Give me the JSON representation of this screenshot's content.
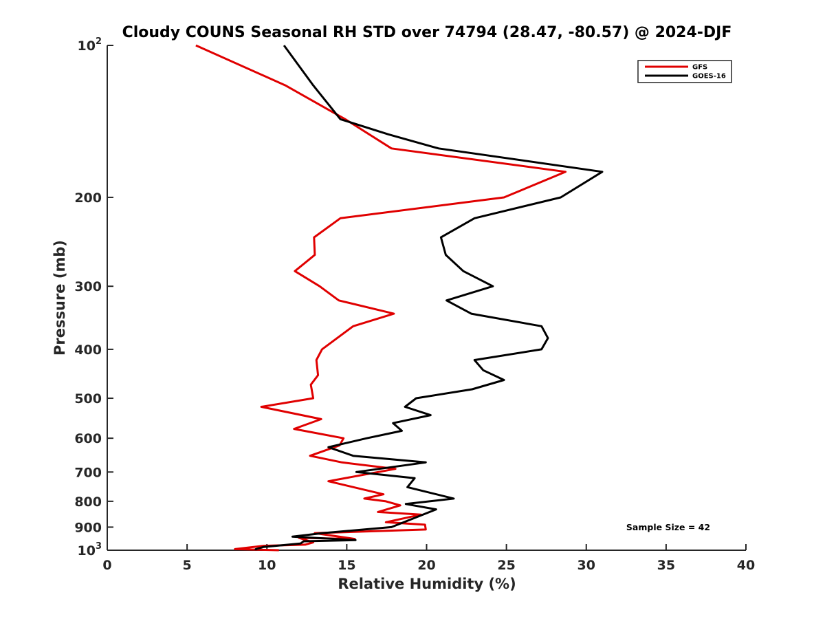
{
  "chart_data": {
    "type": "line",
    "title": "Cloudy COUNS Seasonal RH STD over 74794 (28.47, -80.57) @ 2024-DJF",
    "xlabel": "Relative Humidity (%)",
    "ylabel": "Pressure (mb)",
    "xlim": [
      0,
      40
    ],
    "ylim": [
      100,
      1000
    ],
    "yscale": "log",
    "yreversed": true,
    "grid": false,
    "legend_position": "top-right",
    "x_ticks": [
      0,
      5,
      10,
      15,
      20,
      25,
      30,
      35,
      40
    ],
    "x_tick_labels": [
      "0",
      "5",
      "10",
      "15",
      "20",
      "25",
      "30",
      "35",
      "40"
    ],
    "y_ticks": [
      100,
      200,
      300,
      400,
      500,
      600,
      700,
      800,
      900,
      1000
    ],
    "y_tick_labels": [
      {
        "base": "10",
        "exp": "2"
      },
      {
        "text": "200"
      },
      {
        "text": "300"
      },
      {
        "text": "400"
      },
      {
        "text": "500"
      },
      {
        "text": "600"
      },
      {
        "text": "700"
      },
      {
        "text": "800"
      },
      {
        "text": "900"
      },
      {
        "base": "10",
        "exp": "3"
      }
    ],
    "annotation": "Sample Size = 42",
    "series": [
      {
        "name": "GFS",
        "color": "#e00000",
        "x": [
          5.55,
          11.15,
          14.9,
          17.8,
          28.7,
          24.85,
          14.6,
          12.95,
          13.0,
          11.75,
          13.3,
          14.5,
          17.95,
          15.4,
          13.45,
          13.1,
          13.2,
          12.75,
          12.9,
          9.65,
          13.4,
          11.7,
          14.8,
          14.55,
          12.7,
          14.7,
          18.05,
          13.85,
          17.3,
          16.1,
          17.45,
          18.35,
          16.95,
          19.65,
          17.45,
          19.9,
          19.95,
          13.0,
          15.5,
          12.0,
          12.9,
          12.4,
          9.8,
          8.0,
          10.75
        ],
        "y": [
          100,
          120,
          140,
          160,
          178,
          200,
          220,
          240,
          260,
          280,
          300,
          320,
          340,
          360,
          400,
          420,
          450,
          470,
          500,
          520,
          550,
          575,
          600,
          620,
          650,
          670,
          690,
          730,
          775,
          790,
          800,
          815,
          840,
          850,
          880,
          890,
          910,
          925,
          950,
          945,
          965,
          975,
          980,
          995,
          1000
        ]
      },
      {
        "name": "GOES-16",
        "color": "#000000",
        "x": [
          11.07,
          12.9,
          14.6,
          17.6,
          20.75,
          31.0,
          28.4,
          23.0,
          20.9,
          21.2,
          22.3,
          24.15,
          21.25,
          22.8,
          27.2,
          27.6,
          27.2,
          23.0,
          23.55,
          24.85,
          22.85,
          19.35,
          18.65,
          20.25,
          17.9,
          18.45,
          16.25,
          13.85,
          15.4,
          19.95,
          15.6,
          19.25,
          18.8,
          21.7,
          18.7,
          20.6,
          17.8,
          13.5,
          11.6,
          15.55,
          12.3,
          12.1,
          9.8,
          9.3,
          9.3
        ],
        "y": [
          100,
          120,
          140,
          150,
          160,
          178,
          200,
          220,
          240,
          260,
          280,
          300,
          320,
          340,
          360,
          380,
          400,
          420,
          440,
          460,
          480,
          500,
          520,
          540,
          560,
          580,
          600,
          625,
          650,
          670,
          700,
          720,
          750,
          790,
          810,
          830,
          900,
          925,
          940,
          955,
          960,
          970,
          985,
          995,
          1000
        ]
      }
    ]
  }
}
